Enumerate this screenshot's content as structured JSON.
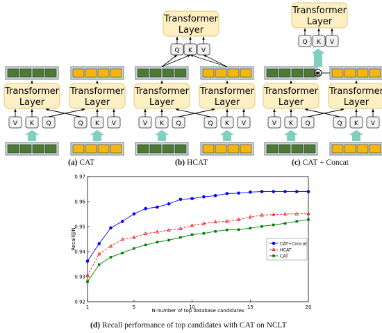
{
  "panels": {
    "a": {
      "caption_tag": "(a)",
      "caption_text": "CAT"
    },
    "b": {
      "caption_tag": "(b)",
      "caption_text": "HCAT"
    },
    "c": {
      "caption_tag": "(c)",
      "caption_text": "CAT + Concat"
    }
  },
  "diagram": {
    "transformer_label_line1": "Transformer",
    "transformer_label_line2": "Layer",
    "q": "Q",
    "k": "K",
    "v": "V",
    "concat_symbol": "⊗",
    "colors": {
      "green_block": "#4c7a32",
      "yellow_block": "#f2b712",
      "transformer_fill": "#fdefc4",
      "transformer_border": "#e8cf86",
      "arrow": "#7fd0c0",
      "qkv_fill": "#f2f2f2",
      "qkv_border": "#555555"
    }
  },
  "chart_caption": {
    "tag": "(d)",
    "text": "Recall performance of top candidates with CAT on NCLT"
  },
  "chart_data": {
    "type": "line",
    "title": "",
    "xlabel": "N-number of top database candidates",
    "ylabel": "Recall@N",
    "xlim": [
      1,
      20
    ],
    "ylim": [
      0.92,
      0.97
    ],
    "xticks": [
      1,
      5,
      10,
      15,
      20
    ],
    "yticks": [
      0.92,
      0.93,
      0.94,
      0.95,
      0.96,
      0.97
    ],
    "ytick_labels": [
      "0.92",
      "0.93",
      "0.94",
      "0.95",
      "0.96",
      "0.97"
    ],
    "legend_position": "right",
    "grid": false,
    "x": [
      1,
      2,
      3,
      4,
      5,
      6,
      7,
      8,
      9,
      10,
      11,
      12,
      13,
      14,
      15,
      16,
      17,
      18,
      19,
      20
    ],
    "series": [
      {
        "name": "CAT+Concat",
        "color": "#0000ff",
        "marker": "circle",
        "dash": "solid",
        "values": [
          0.9362,
          0.9432,
          0.9495,
          0.9521,
          0.9551,
          0.9572,
          0.9578,
          0.9591,
          0.9609,
          0.9612,
          0.9619,
          0.9624,
          0.9632,
          0.9634,
          0.9638,
          0.964,
          0.964,
          0.964,
          0.964,
          0.964
        ]
      },
      {
        "name": "HCAT",
        "color": "#ff0000",
        "marker": "triangle",
        "dash": "dashed",
        "values": [
          0.9305,
          0.9391,
          0.9422,
          0.9449,
          0.9457,
          0.9472,
          0.9479,
          0.9486,
          0.9492,
          0.9505,
          0.9512,
          0.9519,
          0.9521,
          0.9528,
          0.9538,
          0.9546,
          0.9548,
          0.955,
          0.9551,
          0.9552
        ]
      },
      {
        "name": "CAT",
        "color": "#008000",
        "marker": "square",
        "dash": "solid",
        "values": [
          0.928,
          0.9348,
          0.9378,
          0.9395,
          0.9413,
          0.9427,
          0.9438,
          0.9446,
          0.9457,
          0.9468,
          0.9473,
          0.9481,
          0.9487,
          0.9488,
          0.9494,
          0.9501,
          0.9507,
          0.9513,
          0.9521,
          0.9528
        ]
      }
    ]
  }
}
